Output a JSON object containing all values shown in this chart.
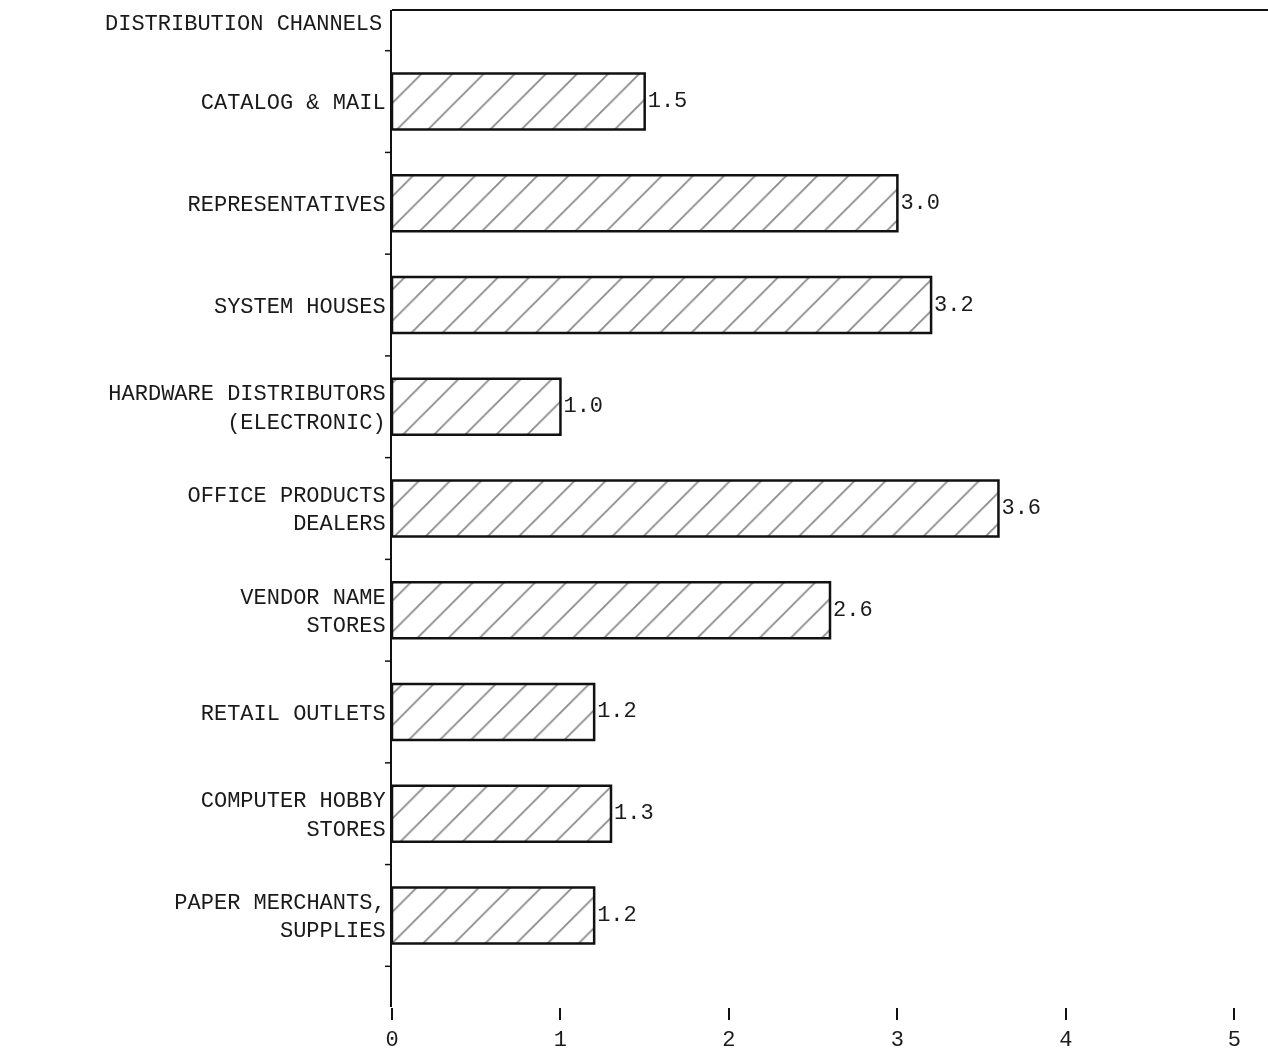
{
  "chart_data": {
    "type": "bar",
    "orientation": "horizontal",
    "ylabel": "DISTRIBUTION CHANNELS",
    "categories": [
      "CATALOG & MAIL",
      "REPRESENTATIVES",
      "SYSTEM HOUSES",
      "HARDWARE DISTRIBUTORS\n(ELECTRONIC)",
      "OFFICE PRODUCTS\nDEALERS",
      "VENDOR NAME\nSTORES",
      "RETAIL OUTLETS",
      "COMPUTER HOBBY\nSTORES",
      "PAPER MERCHANTS,\nSUPPLIES"
    ],
    "values": [
      1.5,
      3.0,
      3.2,
      1.0,
      3.6,
      2.6,
      1.2,
      1.3,
      1.2
    ],
    "value_labels": [
      "1.5",
      "3.0",
      "3.2",
      "1.0",
      "3.6",
      "2.6",
      "1.2",
      "1.3",
      "1.2"
    ],
    "color": "#111111",
    "xlim": [
      0,
      5.2
    ],
    "xticks": [
      0,
      1,
      2,
      3,
      4,
      5
    ],
    "legend": false
  }
}
